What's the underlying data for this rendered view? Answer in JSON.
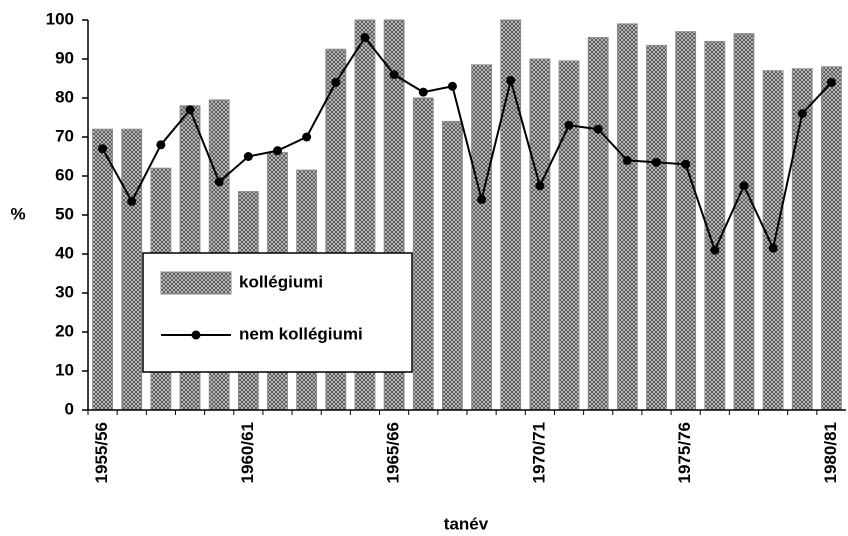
{
  "chart_data": {
    "type": "bar_line",
    "y_label": "%",
    "x_label": "tanév",
    "categories": [
      "1955/56",
      null,
      null,
      null,
      null,
      "1960/61",
      null,
      null,
      null,
      null,
      "1965/66",
      null,
      null,
      null,
      null,
      "1970/71",
      null,
      null,
      null,
      null,
      "1975/76",
      null,
      null,
      null,
      null,
      "1980/81"
    ],
    "series": [
      {
        "name": "kollégiumi",
        "kind": "bar",
        "color": "#8a8a8a",
        "values": [
          72,
          72,
          62,
          78,
          79.5,
          56,
          66,
          61.5,
          92.5,
          100,
          100,
          80,
          74,
          88.5,
          100,
          90,
          89.5,
          95.5,
          99,
          93.5,
          97,
          94.5,
          96.5,
          87,
          87.5,
          88
        ]
      },
      {
        "name": "nem kollégiumi",
        "kind": "line",
        "color": "#000000",
        "values": [
          67,
          53.5,
          68,
          77,
          58.5,
          65,
          66.5,
          70,
          84,
          95.5,
          86,
          81.5,
          83,
          54,
          84.5,
          57.5,
          73,
          72,
          64,
          63.5,
          63,
          41,
          57.5,
          41.5,
          76,
          84
        ]
      }
    ],
    "ylim": [
      0,
      100
    ],
    "yticks": [
      0,
      10,
      20,
      30,
      40,
      50,
      60,
      70,
      80,
      90,
      100
    ]
  }
}
